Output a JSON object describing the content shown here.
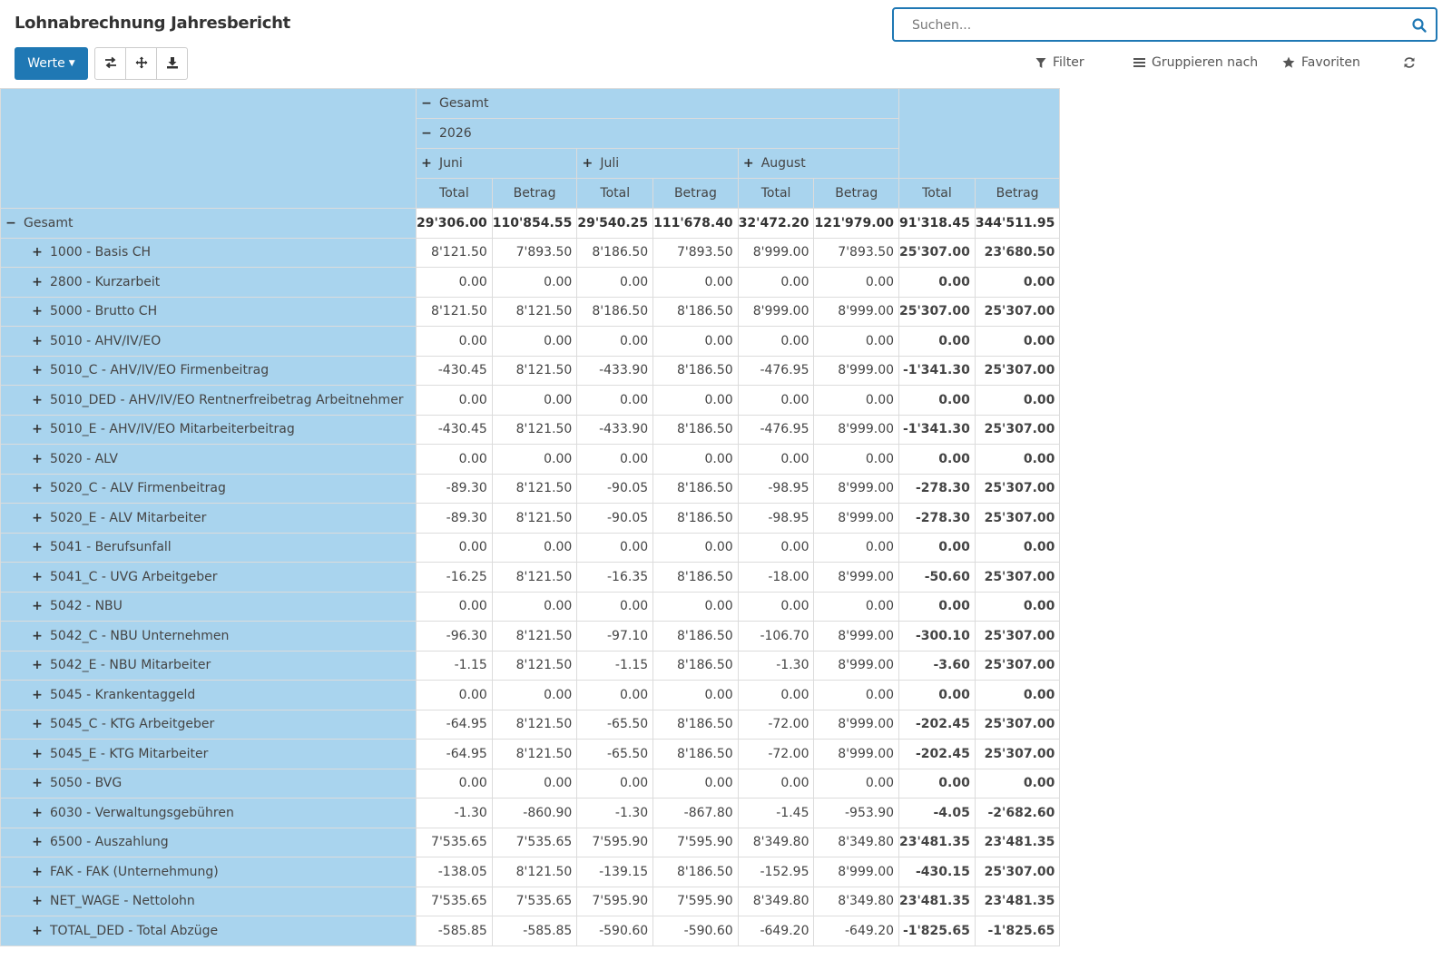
{
  "page": {
    "title": "Lohnabrechnung Jahresbericht"
  },
  "search": {
    "placeholder": "Suchen..."
  },
  "toolbar": {
    "measures_label": "Werte",
    "filter_label": "Filter",
    "groupby_label": "Gruppieren nach",
    "favorites_label": "Favoriten"
  },
  "icons": {
    "search": "search-icon",
    "flip": "exchange-icon",
    "expand": "arrows-icon",
    "download": "download-icon",
    "filter": "filter-icon",
    "groupby": "list-icon",
    "favorites": "star-icon",
    "reload": "refresh-icon"
  },
  "colors": {
    "accent": "#1f78b4",
    "header_bg": "#a9d4ee"
  },
  "pivot": {
    "col_header_total": "Gesamt",
    "year": "2026",
    "months": [
      "Juni",
      "Juli",
      "August"
    ],
    "measures": [
      "Total",
      "Betrag"
    ],
    "total_row": {
      "label": "Gesamt",
      "values": [
        "29'306.00",
        "110'854.55",
        "29'540.25",
        "111'678.40",
        "32'472.20",
        "121'979.00",
        "91'318.45",
        "344'511.95"
      ]
    },
    "rows": [
      {
        "label": "1000 - Basis CH",
        "values": [
          "8'121.50",
          "7'893.50",
          "8'186.50",
          "7'893.50",
          "8'999.00",
          "7'893.50",
          "25'307.00",
          "23'680.50"
        ]
      },
      {
        "label": "2800 - Kurzarbeit",
        "values": [
          "0.00",
          "0.00",
          "0.00",
          "0.00",
          "0.00",
          "0.00",
          "0.00",
          "0.00"
        ]
      },
      {
        "label": "5000 - Brutto CH",
        "values": [
          "8'121.50",
          "8'121.50",
          "8'186.50",
          "8'186.50",
          "8'999.00",
          "8'999.00",
          "25'307.00",
          "25'307.00"
        ]
      },
      {
        "label": "5010 - AHV/IV/EO",
        "values": [
          "0.00",
          "0.00",
          "0.00",
          "0.00",
          "0.00",
          "0.00",
          "0.00",
          "0.00"
        ]
      },
      {
        "label": "5010_C - AHV/IV/EO Firmenbeitrag",
        "values": [
          "-430.45",
          "8'121.50",
          "-433.90",
          "8'186.50",
          "-476.95",
          "8'999.00",
          "-1'341.30",
          "25'307.00"
        ]
      },
      {
        "label": "5010_DED - AHV/IV/EO Rentnerfreibetrag Arbeitnehmer",
        "values": [
          "0.00",
          "0.00",
          "0.00",
          "0.00",
          "0.00",
          "0.00",
          "0.00",
          "0.00"
        ]
      },
      {
        "label": "5010_E - AHV/IV/EO Mitarbeiterbeitrag",
        "values": [
          "-430.45",
          "8'121.50",
          "-433.90",
          "8'186.50",
          "-476.95",
          "8'999.00",
          "-1'341.30",
          "25'307.00"
        ]
      },
      {
        "label": "5020 - ALV",
        "values": [
          "0.00",
          "0.00",
          "0.00",
          "0.00",
          "0.00",
          "0.00",
          "0.00",
          "0.00"
        ]
      },
      {
        "label": "5020_C - ALV Firmenbeitrag",
        "values": [
          "-89.30",
          "8'121.50",
          "-90.05",
          "8'186.50",
          "-98.95",
          "8'999.00",
          "-278.30",
          "25'307.00"
        ]
      },
      {
        "label": "5020_E - ALV Mitarbeiter",
        "values": [
          "-89.30",
          "8'121.50",
          "-90.05",
          "8'186.50",
          "-98.95",
          "8'999.00",
          "-278.30",
          "25'307.00"
        ]
      },
      {
        "label": "5041 - Berufsunfall",
        "values": [
          "0.00",
          "0.00",
          "0.00",
          "0.00",
          "0.00",
          "0.00",
          "0.00",
          "0.00"
        ]
      },
      {
        "label": "5041_C - UVG Arbeitgeber",
        "values": [
          "-16.25",
          "8'121.50",
          "-16.35",
          "8'186.50",
          "-18.00",
          "8'999.00",
          "-50.60",
          "25'307.00"
        ]
      },
      {
        "label": "5042 - NBU",
        "values": [
          "0.00",
          "0.00",
          "0.00",
          "0.00",
          "0.00",
          "0.00",
          "0.00",
          "0.00"
        ]
      },
      {
        "label": "5042_C - NBU Unternehmen",
        "values": [
          "-96.30",
          "8'121.50",
          "-97.10",
          "8'186.50",
          "-106.70",
          "8'999.00",
          "-300.10",
          "25'307.00"
        ]
      },
      {
        "label": "5042_E - NBU Mitarbeiter",
        "values": [
          "-1.15",
          "8'121.50",
          "-1.15",
          "8'186.50",
          "-1.30",
          "8'999.00",
          "-3.60",
          "25'307.00"
        ]
      },
      {
        "label": "5045 - Krankentaggeld",
        "values": [
          "0.00",
          "0.00",
          "0.00",
          "0.00",
          "0.00",
          "0.00",
          "0.00",
          "0.00"
        ]
      },
      {
        "label": "5045_C - KTG Arbeitgeber",
        "values": [
          "-64.95",
          "8'121.50",
          "-65.50",
          "8'186.50",
          "-72.00",
          "8'999.00",
          "-202.45",
          "25'307.00"
        ]
      },
      {
        "label": "5045_E - KTG Mitarbeiter",
        "values": [
          "-64.95",
          "8'121.50",
          "-65.50",
          "8'186.50",
          "-72.00",
          "8'999.00",
          "-202.45",
          "25'307.00"
        ]
      },
      {
        "label": "5050 - BVG",
        "values": [
          "0.00",
          "0.00",
          "0.00",
          "0.00",
          "0.00",
          "0.00",
          "0.00",
          "0.00"
        ]
      },
      {
        "label": "6030 - Verwaltungsgebühren",
        "values": [
          "-1.30",
          "-860.90",
          "-1.30",
          "-867.80",
          "-1.45",
          "-953.90",
          "-4.05",
          "-2'682.60"
        ]
      },
      {
        "label": "6500 - Auszahlung",
        "values": [
          "7'535.65",
          "7'535.65",
          "7'595.90",
          "7'595.90",
          "8'349.80",
          "8'349.80",
          "23'481.35",
          "23'481.35"
        ]
      },
      {
        "label": "FAK - FAK (Unternehmung)",
        "values": [
          "-138.05",
          "8'121.50",
          "-139.15",
          "8'186.50",
          "-152.95",
          "8'999.00",
          "-430.15",
          "25'307.00"
        ]
      },
      {
        "label": "NET_WAGE - Nettolohn",
        "values": [
          "7'535.65",
          "7'535.65",
          "7'595.90",
          "7'595.90",
          "8'349.80",
          "8'349.80",
          "23'481.35",
          "23'481.35"
        ]
      },
      {
        "label": "TOTAL_DED - Total Abzüge",
        "values": [
          "-585.85",
          "-585.85",
          "-590.60",
          "-590.60",
          "-649.20",
          "-649.20",
          "-1'825.65",
          "-1'825.65"
        ]
      }
    ]
  }
}
